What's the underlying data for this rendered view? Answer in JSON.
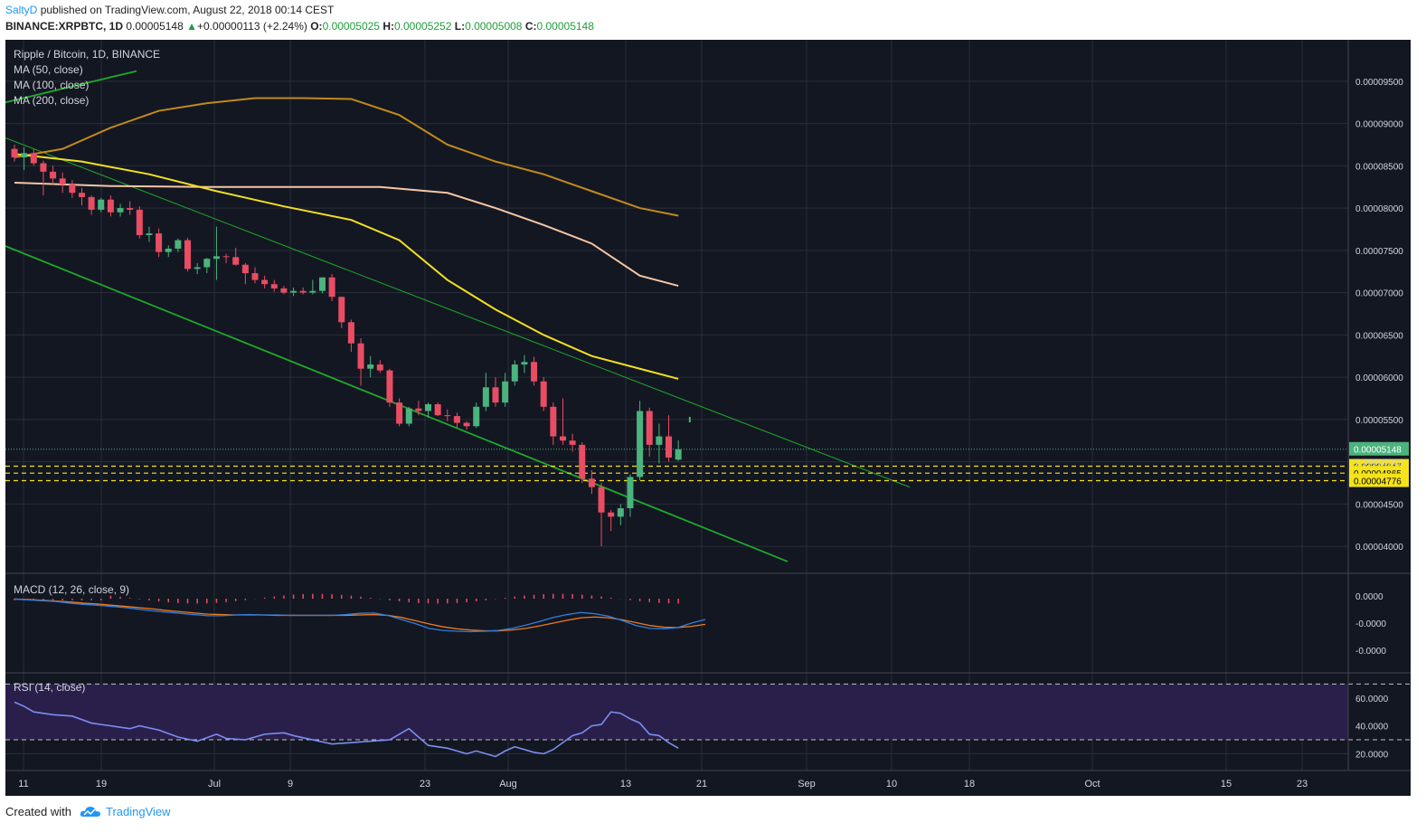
{
  "header": {
    "author": "SaltyD",
    "published_text": "published on TradingView.com, August 22, 2018 00:14 CEST",
    "symbol": "BINANCE:XRPBTC, 1D",
    "last_price": "0.00005148",
    "change": "+0.00000113 (+2.24%)",
    "open_label": "O:",
    "open": "0.00005025",
    "high_label": "H:",
    "high": "0.00005252",
    "low_label": "L:",
    "low": "0.00005008",
    "close_label": "C:",
    "close": "0.00005148"
  },
  "legend": {
    "title": "Ripple / Bitcoin, 1D, BINANCE",
    "ma50": "MA (50, close)",
    "ma100": "MA (100, close)",
    "ma200": "MA (200, close)"
  },
  "macd_label": "MACD (12, 26, close, 9)",
  "rsi_label": "RSI (14, close)",
  "footer": {
    "created_with": "Created with",
    "brand": "TradingView"
  },
  "colors": {
    "background": "#131722",
    "up": "#4bb37d",
    "down": "#e94d63",
    "ma50": "#f2e01f",
    "ma100": "#f5c6a5",
    "ma200": "#c28a1c",
    "trend": "#1fa92a",
    "macd": "#2f7fe0",
    "signal": "#f07a1a",
    "rsi": "#7a8ef0",
    "rsi_band": "#2a1f4a"
  },
  "chart_data": [
    {
      "type": "candlestick",
      "title": "Ripple / Bitcoin, 1D, BINANCE",
      "x_axis": {
        "ticks": [
          "11",
          "19",
          "Jul",
          "9",
          "23",
          "Aug",
          "13",
          "21",
          "Sep",
          "10",
          "18",
          "Oct",
          "15",
          "23"
        ],
        "first_date": "2018-06-10",
        "last_date": "2018-08-21"
      },
      "y_axis": {
        "ticks": [
          "0.00004000",
          "0.00004500",
          "0.00005000",
          "0.00005500",
          "0.00006000",
          "0.00006500",
          "0.00007000",
          "0.00007500",
          "0.00008000",
          "0.00008500",
          "0.00009000",
          "0.00009500"
        ],
        "range": [
          3.68e-05,
          9.99e-05
        ]
      },
      "candles_ohlc_e8": [
        [
          8700,
          8750,
          8550,
          8600
        ],
        [
          8600,
          8720,
          8450,
          8650
        ],
        [
          8650,
          8700,
          8500,
          8530
        ],
        [
          8530,
          8560,
          8150,
          8430
        ],
        [
          8430,
          8500,
          8280,
          8350
        ],
        [
          8350,
          8420,
          8180,
          8280
        ],
        [
          8280,
          8330,
          8120,
          8180
        ],
        [
          8180,
          8240,
          8030,
          8130
        ],
        [
          8130,
          8150,
          7920,
          7980
        ],
        [
          7980,
          8120,
          7950,
          8100
        ],
        [
          8100,
          8150,
          7900,
          7950
        ],
        [
          7950,
          8050,
          7900,
          8000
        ],
        [
          8000,
          8080,
          7920,
          7980
        ],
        [
          7980,
          8020,
          7640,
          7680
        ],
        [
          7680,
          7780,
          7600,
          7700
        ],
        [
          7700,
          7760,
          7420,
          7480
        ],
        [
          7480,
          7560,
          7420,
          7520
        ],
        [
          7520,
          7640,
          7480,
          7620
        ],
        [
          7620,
          7650,
          7250,
          7280
        ],
        [
          7280,
          7350,
          7220,
          7300
        ],
        [
          7300,
          7410,
          7230,
          7400
        ],
        [
          7400,
          7780,
          7150,
          7430
        ],
        [
          7430,
          7460,
          7350,
          7420
        ],
        [
          7420,
          7530,
          7320,
          7330
        ],
        [
          7330,
          7350,
          7100,
          7230
        ],
        [
          7230,
          7300,
          7110,
          7150
        ],
        [
          7150,
          7200,
          7050,
          7100
        ],
        [
          7100,
          7150,
          7010,
          7050
        ],
        [
          7050,
          7080,
          6980,
          7000
        ],
        [
          7000,
          7060,
          6960,
          7020
        ],
        [
          7020,
          7060,
          6980,
          7000
        ],
        [
          7000,
          7150,
          6980,
          7020
        ],
        [
          7020,
          7180,
          6990,
          7180
        ],
        [
          7180,
          7220,
          6900,
          6950
        ],
        [
          6950,
          6950,
          6580,
          6650
        ],
        [
          6650,
          6680,
          6300,
          6400
        ],
        [
          6400,
          6460,
          5900,
          6100
        ],
        [
          6100,
          6250,
          6000,
          6150
        ],
        [
          6150,
          6200,
          6050,
          6080
        ],
        [
          6080,
          6100,
          5650,
          5700
        ],
        [
          5700,
          5750,
          5420,
          5450
        ],
        [
          5450,
          5650,
          5420,
          5630
        ],
        [
          5630,
          5720,
          5550,
          5600
        ],
        [
          5600,
          5700,
          5520,
          5680
        ],
        [
          5680,
          5700,
          5540,
          5550
        ],
        [
          5550,
          5620,
          5480,
          5540
        ],
        [
          5540,
          5580,
          5400,
          5460
        ],
        [
          5460,
          5480,
          5380,
          5420
        ],
        [
          5420,
          5700,
          5400,
          5650
        ],
        [
          5650,
          6050,
          5600,
          5880
        ],
        [
          5880,
          6000,
          5650,
          5700
        ],
        [
          5700,
          6050,
          5650,
          5950
        ],
        [
          5950,
          6200,
          5900,
          6150
        ],
        [
          6150,
          6260,
          6050,
          6180
        ],
        [
          6180,
          6240,
          5900,
          5950
        ],
        [
          5950,
          6000,
          5600,
          5650
        ],
        [
          5650,
          5700,
          5200,
          5300
        ],
        [
          5300,
          5750,
          5200,
          5250
        ],
        [
          5250,
          5330,
          5120,
          5200
        ],
        [
          5200,
          5230,
          4750,
          4800
        ],
        [
          4800,
          4900,
          4620,
          4700
        ],
        [
          4700,
          4750,
          4000,
          4400
        ],
        [
          4400,
          4430,
          4180,
          4350
        ],
        [
          4350,
          4500,
          4250,
          4450
        ],
        [
          4450,
          4850,
          4350,
          4820
        ],
        [
          4820,
          5720,
          4780,
          5600
        ],
        [
          5600,
          5640,
          5060,
          5200
        ],
        [
          5200,
          5450,
          4980,
          5300
        ],
        [
          5300,
          5550,
          5000,
          5050
        ],
        [
          5025,
          5252,
          5008,
          5148
        ]
      ],
      "ma50_e8": [
        [
          0,
          8640
        ],
        [
          7,
          8550
        ],
        [
          14,
          8400
        ],
        [
          21,
          8200
        ],
        [
          28,
          8020
        ],
        [
          35,
          7860
        ],
        [
          40,
          7620
        ],
        [
          45,
          7150
        ],
        [
          50,
          6800
        ],
        [
          55,
          6500
        ],
        [
          60,
          6250
        ],
        [
          65,
          6100
        ],
        [
          69,
          5980
        ]
      ],
      "ma100_e8": [
        [
          0,
          8300
        ],
        [
          10,
          8260
        ],
        [
          20,
          8250
        ],
        [
          30,
          8250
        ],
        [
          38,
          8250
        ],
        [
          45,
          8180
        ],
        [
          50,
          8000
        ],
        [
          55,
          7800
        ],
        [
          60,
          7580
        ],
        [
          65,
          7200
        ],
        [
          69,
          7080
        ]
      ],
      "ma200_e8": [
        [
          0,
          8600
        ],
        [
          5,
          8700
        ],
        [
          10,
          8950
        ],
        [
          15,
          9150
        ],
        [
          20,
          9240
        ],
        [
          25,
          9300
        ],
        [
          30,
          9300
        ],
        [
          35,
          9290
        ],
        [
          40,
          9100
        ],
        [
          45,
          8750
        ],
        [
          50,
          8550
        ],
        [
          55,
          8400
        ],
        [
          60,
          8200
        ],
        [
          65,
          8000
        ],
        [
          69,
          7910
        ]
      ],
      "horizontal_lines": {
        "last_price_label": "0.00005148",
        "support_levels": [
          "0.00004947",
          "0.00004865",
          "0.00004776"
        ]
      },
      "trendlines": "descending channel"
    },
    {
      "type": "line",
      "title": "MACD (12, 26, close, 9)",
      "y_ticks": [
        "0.0000",
        "-0.0000",
        "-0.0000"
      ],
      "macd": [
        -0.1,
        -0.3,
        -0.5,
        -0.7,
        -1.1,
        -1.4,
        -1.6,
        -1.9,
        -2.2,
        -2.6,
        -3.0,
        -3.3,
        -3.6,
        -3.9,
        -4.2,
        -4.2,
        -4.0,
        -3.9,
        -4.0,
        -4.0,
        -4.1,
        -4.1,
        -4.1,
        -4.1,
        -3.9,
        -3.6,
        -3.5,
        -4.1,
        -5.1,
        -6.1,
        -7.3,
        -7.8,
        -8.0,
        -8.1,
        -8.0,
        -7.8,
        -7.3,
        -6.5,
        -5.6,
        -4.6,
        -3.9,
        -3.4,
        -3.7,
        -4.3,
        -5.4,
        -6.6,
        -7.3,
        -7.4,
        -7.1,
        -6.0,
        -5.1
      ],
      "signal": [
        -0.1,
        -0.2,
        -0.4,
        -0.6,
        -0.8,
        -1.1,
        -1.3,
        -1.6,
        -1.9,
        -2.2,
        -2.5,
        -2.9,
        -3.2,
        -3.5,
        -3.8,
        -3.9,
        -4.0,
        -4.0,
        -4.0,
        -4.1,
        -4.1,
        -4.1,
        -4.1,
        -4.1,
        -4.1,
        -4.0,
        -3.9,
        -4.1,
        -4.6,
        -5.4,
        -6.2,
        -6.9,
        -7.4,
        -7.7,
        -7.9,
        -7.9,
        -7.7,
        -7.3,
        -6.7,
        -6.0,
        -5.3,
        -4.7,
        -4.5,
        -4.7,
        -5.2,
        -5.9,
        -6.6,
        -7.0,
        -7.1,
        -6.8,
        -6.3
      ]
    },
    {
      "type": "line",
      "title": "RSI (14, close)",
      "y_ticks": [
        "60.0000",
        "40.0000",
        "20.0000"
      ],
      "band": [
        30,
        70
      ],
      "x": [
        0,
        1,
        2,
        4,
        6,
        8,
        10,
        12,
        13,
        15,
        17,
        19,
        21,
        22,
        24,
        26,
        28,
        29,
        31,
        33,
        35,
        37,
        39,
        41,
        43,
        45,
        47,
        48,
        50,
        51,
        52,
        54,
        55,
        56,
        57,
        58,
        59,
        60,
        61,
        62,
        63,
        64,
        65,
        66,
        67,
        68,
        69
      ],
      "values": [
        57,
        54,
        50,
        48,
        47,
        42,
        40,
        38,
        40,
        37,
        32,
        29,
        34,
        31,
        30,
        34,
        35,
        33,
        30,
        27,
        28,
        29,
        30,
        38,
        26,
        24,
        20,
        22,
        18,
        22,
        25,
        21,
        20,
        23,
        28,
        33,
        35,
        40,
        41,
        50,
        49,
        45,
        42,
        34,
        33,
        28,
        24
      ]
    }
  ]
}
